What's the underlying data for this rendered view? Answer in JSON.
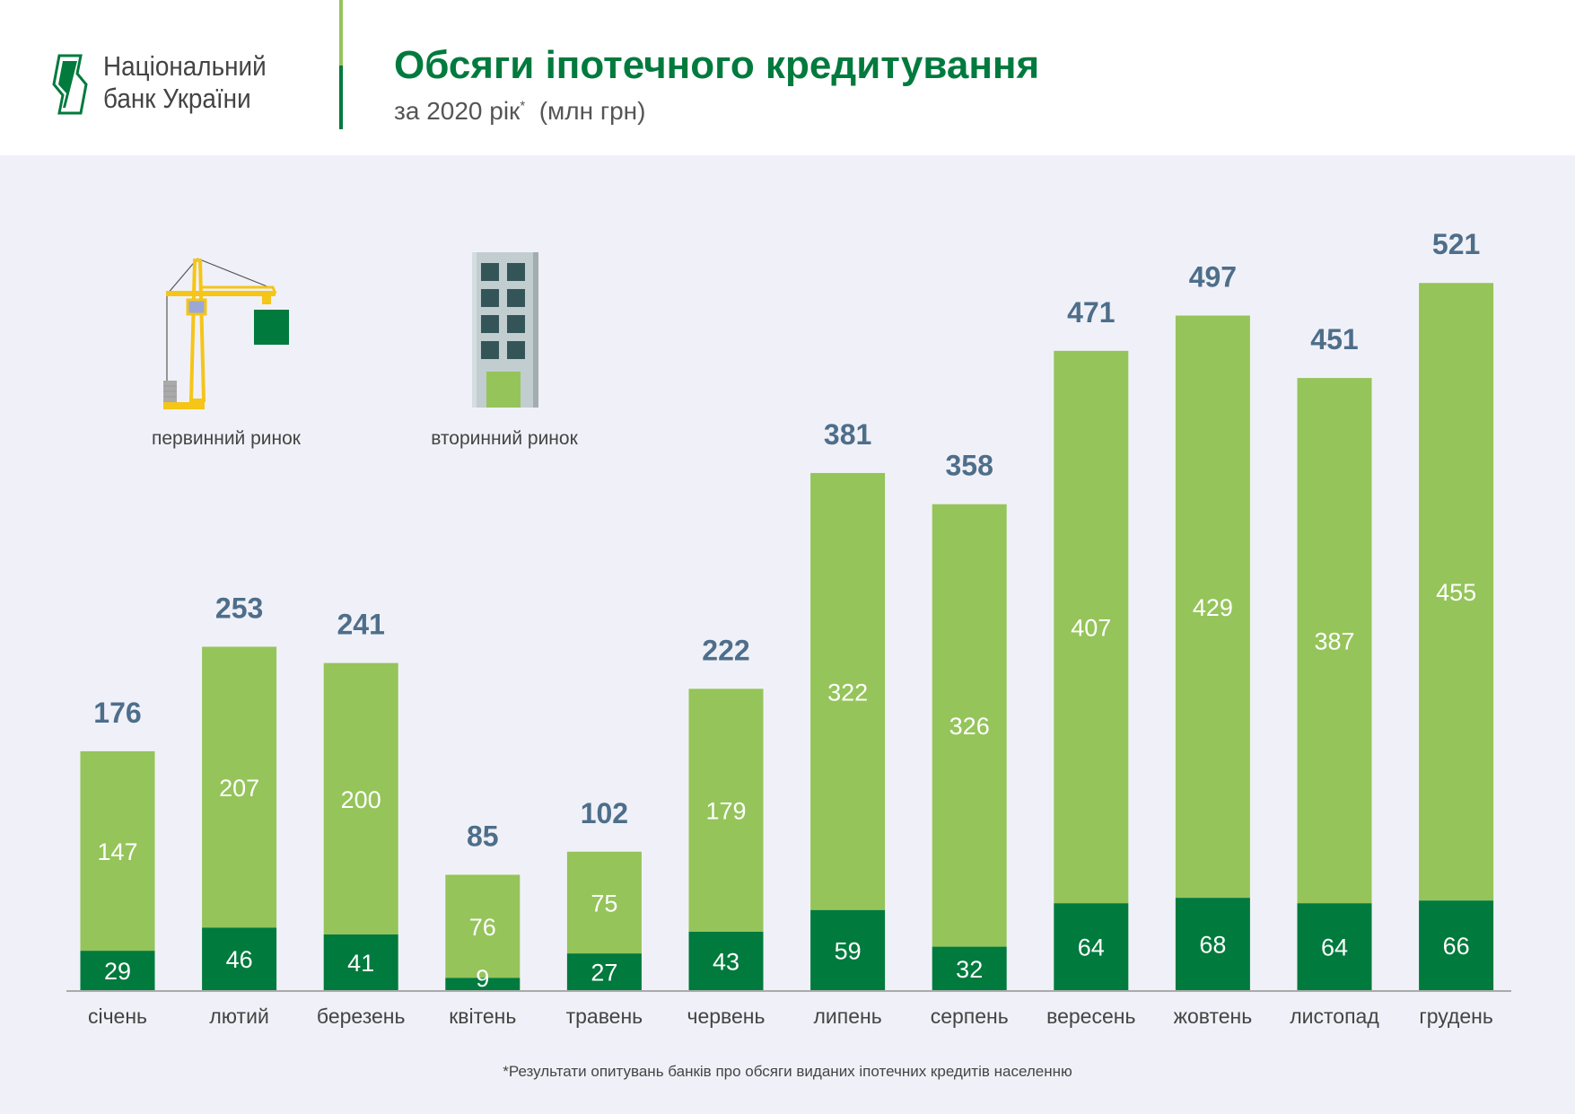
{
  "header": {
    "logo_lines": [
      "Національний",
      "банк України"
    ],
    "title": "Обсяги іпотечного кредитування",
    "subtitle": "за 2020 рік",
    "subtitle_mark": "*",
    "subtitle_unit": "(млн грн)"
  },
  "legend": [
    {
      "label": "первинний ринок",
      "icon": "crane-icon",
      "color": "#007a3d"
    },
    {
      "label": "вторинний ринок",
      "icon": "building-icon",
      "color": "#95c45a"
    }
  ],
  "footnote": "*Результати опитувань банків про обсяги виданих іпотечних кредитів населенню",
  "colors": {
    "primary": "#007a3d",
    "secondary": "#95c45a",
    "total_label": "#4e6e8a",
    "title": "#007a3d"
  },
  "chart_data": {
    "type": "bar",
    "stacked": true,
    "title": "Обсяги іпотечного кредитування",
    "subtitle": "за 2020 рік* (млн грн)",
    "categories": [
      "січень",
      "лютий",
      "березень",
      "квітень",
      "травень",
      "червень",
      "липень",
      "серпень",
      "вересень",
      "жовтень",
      "листопад",
      "грудень"
    ],
    "series": [
      {
        "name": "первинний ринок",
        "color": "#007a3d",
        "values": [
          29,
          46,
          41,
          9,
          27,
          43,
          59,
          32,
          64,
          68,
          64,
          66
        ]
      },
      {
        "name": "вторинний ринок",
        "color": "#95c45a",
        "values": [
          147,
          207,
          200,
          76,
          75,
          179,
          322,
          326,
          407,
          429,
          387,
          455
        ]
      }
    ],
    "totals": [
      176,
      253,
      241,
      85,
      102,
      222,
      381,
      358,
      471,
      497,
      451,
      521
    ],
    "ylim": [
      0,
      521
    ],
    "grid": false,
    "legend_position": "top-left"
  }
}
